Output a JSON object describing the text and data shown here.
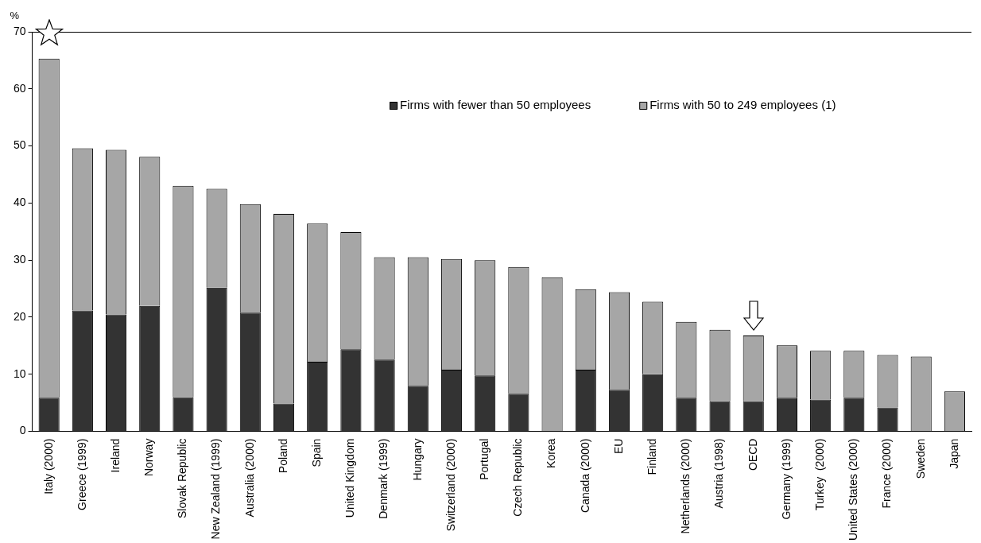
{
  "chart_data": {
    "type": "bar",
    "stacked": true,
    "ylabel": "%",
    "categories": [
      "Italy (2000)",
      "Greece (1999)",
      "Ireland",
      "Norway",
      "Slovak Republic",
      "New Zealand (1999)",
      "Australia (2000)",
      "Poland",
      "Spain",
      "United Kingdom",
      "Denmark (1999)",
      "Hungary",
      "Switzerland (2000)",
      "Portugal",
      "Czech Republic",
      "Korea",
      "Canada (2000)",
      "EU",
      "Finland",
      "Netherlands (2000)",
      "Austria (1998)",
      "OECD",
      "Germany (1999)",
      "Turkey  (2000)",
      "United States (2000)",
      "France (2000)",
      "Sweden",
      "Japan"
    ],
    "series": [
      {
        "name": "Firms with fewer than 50 employees",
        "color": "#333333",
        "values": [
          5.9,
          21.2,
          20.5,
          22,
          6,
          25.2,
          20.8,
          4.9,
          12.2,
          14.4,
          12.6,
          8,
          10.8,
          9.8,
          6.6,
          null,
          10.8,
          7.3,
          10,
          5.9,
          5.3,
          5.3,
          5.9,
          5.6,
          5.9,
          4.2,
          null,
          null
        ]
      },
      {
        "name": "Firms with 50 to 249 employees (1)",
        "color": "#a6a6a6",
        "values": [
          59.4,
          28.4,
          28.8,
          26.1,
          37,
          17.3,
          19,
          33.2,
          24.2,
          20.5,
          17.9,
          22.5,
          19.4,
          20.2,
          22.2,
          27,
          14.1,
          17.1,
          12.7,
          13.3,
          12.5,
          11.5,
          9.2,
          8.5,
          8.2,
          9.2,
          13.1,
          7
        ]
      }
    ],
    "ylim": [
      0,
      70
    ],
    "yticks": [
      0,
      10,
      20,
      30,
      40,
      50,
      60,
      70
    ],
    "grid": false,
    "legend": "top"
  }
}
